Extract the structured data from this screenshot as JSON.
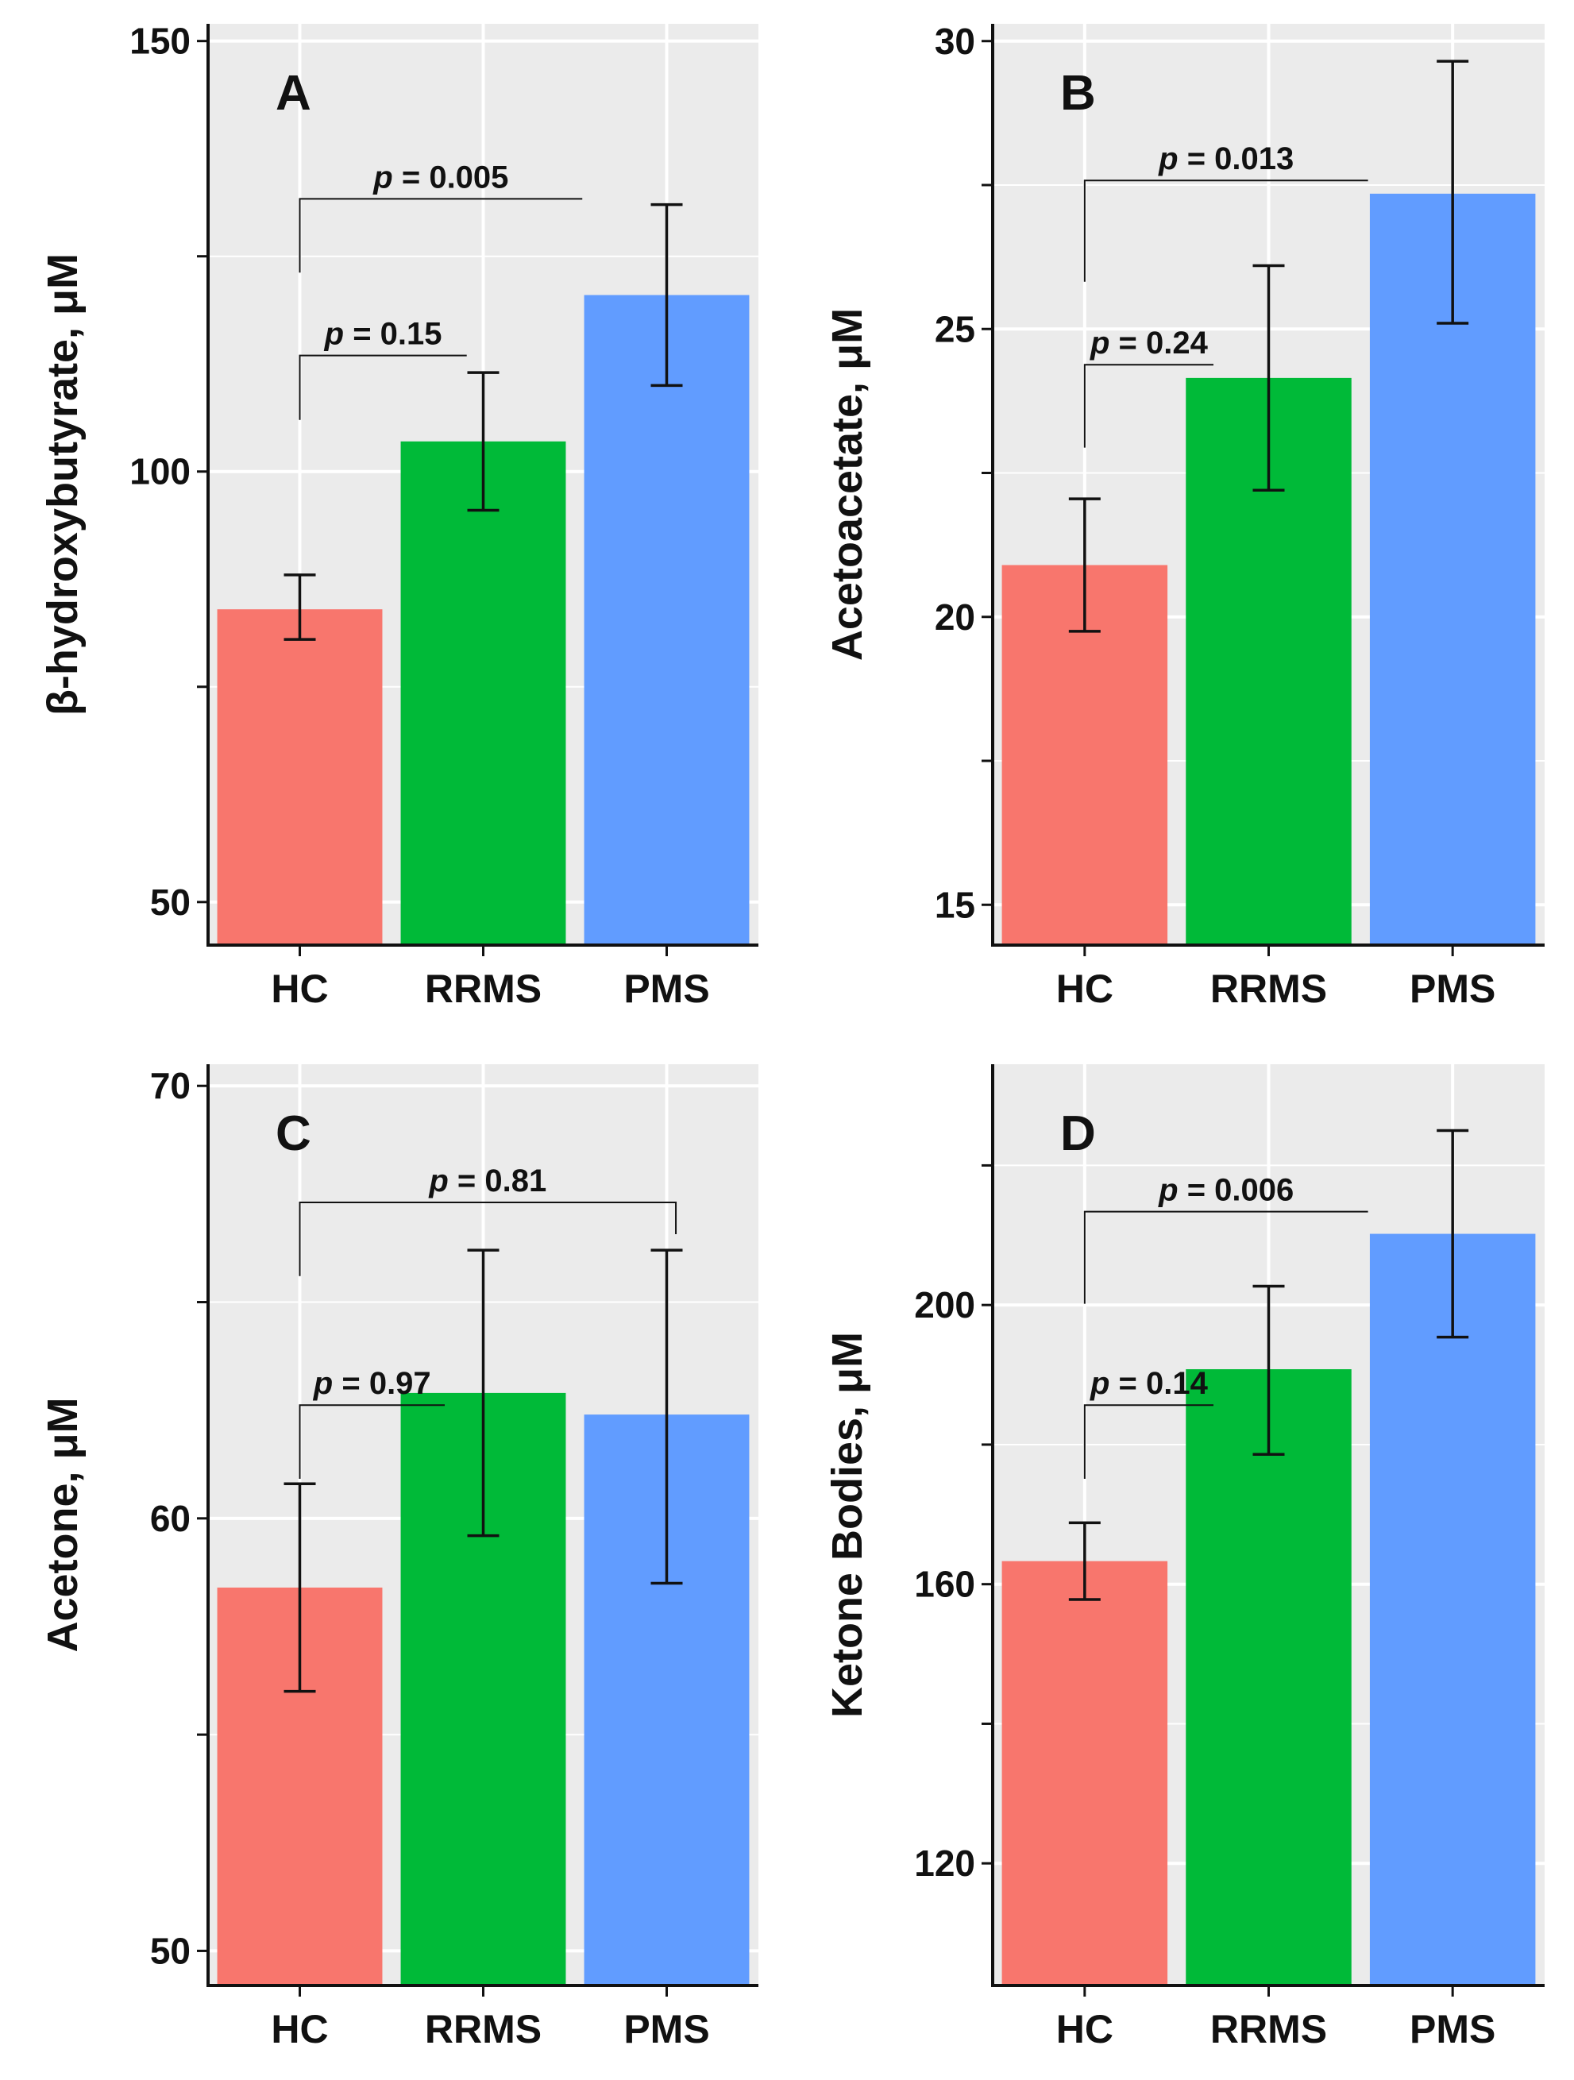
{
  "chart_data": [
    {
      "type": "bar",
      "panel": "A",
      "ylabel": "β-hydroxybutyrate, μM",
      "categories": [
        "HC",
        "RRMS",
        "PMS"
      ],
      "values": [
        84,
        103.5,
        120.5
      ],
      "error_low": [
        80.5,
        95.5,
        110
      ],
      "error_high": [
        88,
        111.5,
        131
      ],
      "ylim": [
        45,
        152
      ],
      "yticks": [
        50,
        100,
        150
      ],
      "ytick_labels": [
        "50",
        "100",
        "150"
      ],
      "minor_yticks": [
        75,
        125
      ],
      "comparisons": [
        {
          "from": 0,
          "to": 1,
          "label": "p = 0.15",
          "p_symbol": "p",
          "p_value": "= 0.15"
        },
        {
          "from": 0,
          "to": 2,
          "label": "p = 0.005",
          "p_symbol": "p",
          "p_value": "= 0.005"
        }
      ],
      "colors": [
        "#F8766D",
        "#00BA38",
        "#619CFF"
      ]
    },
    {
      "type": "bar",
      "panel": "B",
      "ylabel": "Acetoacetate, μM",
      "categories": [
        "HC",
        "RRMS",
        "PMS"
      ],
      "values": [
        20.9,
        24.15,
        27.35
      ],
      "error_low": [
        19.75,
        22.2,
        25.1
      ],
      "error_high": [
        22.05,
        26.1,
        29.65
      ],
      "ylim": [
        14.3,
        30.3
      ],
      "yticks": [
        15,
        20,
        25,
        30
      ],
      "ytick_labels": [
        "15",
        "20",
        "25",
        "30"
      ],
      "minor_yticks": [
        17.5,
        22.5,
        27.5
      ],
      "comparisons": [
        {
          "from": 0,
          "to": 1,
          "label": "p = 0.24",
          "p_symbol": "p",
          "p_value": "= 0.24"
        },
        {
          "from": 0,
          "to": 2,
          "label": "p = 0.013",
          "p_symbol": "p",
          "p_value": "= 0.013"
        }
      ],
      "colors": [
        "#F8766D",
        "#00BA38",
        "#619CFF"
      ]
    },
    {
      "type": "bar",
      "panel": "C",
      "ylabel": "Acetone, μM",
      "categories": [
        "HC",
        "RRMS",
        "PMS"
      ],
      "values": [
        58.4,
        62.9,
        62.4
      ],
      "error_low": [
        56.0,
        59.6,
        58.5
      ],
      "error_high": [
        60.8,
        66.2,
        66.2
      ],
      "ylim": [
        49.2,
        70.5
      ],
      "yticks": [
        50,
        60,
        70
      ],
      "ytick_labels": [
        "50",
        "60",
        "70"
      ],
      "minor_yticks": [
        55,
        65
      ],
      "comparisons": [
        {
          "from": 0,
          "to": 1,
          "label": "p = 0.97",
          "p_symbol": "p",
          "p_value": "= 0.97"
        },
        {
          "from": 0,
          "to": 2,
          "label": "p = 0.81",
          "p_symbol": "p",
          "p_value": "= 0.81"
        }
      ],
      "colors": [
        "#F8766D",
        "#00BA38",
        "#619CFF"
      ]
    },
    {
      "type": "bar",
      "panel": "D",
      "ylabel": "Ketone Bodies, μM",
      "categories": [
        "HC",
        "RRMS",
        "PMS"
      ],
      "values": [
        163.3,
        190.8,
        210.2
      ],
      "error_low": [
        157.8,
        178.6,
        195.4
      ],
      "error_high": [
        168.8,
        202.7,
        225
      ],
      "ylim": [
        102.5,
        234.5
      ],
      "yticks": [
        120,
        160,
        200
      ],
      "ytick_labels": [
        "120",
        "160",
        "200"
      ],
      "minor_yticks": [
        140,
        180,
        220
      ],
      "comparisons": [
        {
          "from": 0,
          "to": 1,
          "label": "p = 0.14",
          "p_symbol": "p",
          "p_value": "= 0.14"
        },
        {
          "from": 0,
          "to": 2,
          "label": "p = 0.006",
          "p_symbol": "p",
          "p_value": "= 0.006"
        }
      ],
      "colors": [
        "#F8766D",
        "#00BA38",
        "#619CFF"
      ]
    }
  ]
}
